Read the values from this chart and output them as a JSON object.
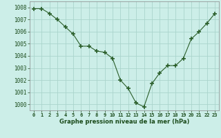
{
  "x": [
    0,
    1,
    2,
    3,
    4,
    5,
    6,
    7,
    8,
    9,
    10,
    11,
    12,
    13,
    14,
    15,
    16,
    17,
    18,
    19,
    20,
    21,
    22,
    23
  ],
  "y": [
    1007.9,
    1007.9,
    1007.5,
    1007.0,
    1006.4,
    1005.8,
    1004.8,
    1004.8,
    1004.4,
    1004.3,
    1003.8,
    1002.0,
    1001.3,
    1000.1,
    999.8,
    1001.7,
    1002.6,
    1003.2,
    1003.2,
    1003.8,
    1005.4,
    1006.0,
    1006.7,
    1007.5
  ],
  "line_color": "#2a5e2a",
  "marker_color": "#2a5e2a",
  "bg_color": "#cceee8",
  "grid_color": "#aad4cc",
  "xlabel": "Graphe pression niveau de la mer (hPa)",
  "xlabel_color": "#1a4a1a",
  "tick_color": "#1a4a1a",
  "ylim": [
    999.5,
    1008.5
  ],
  "yticks": [
    1000,
    1001,
    1002,
    1003,
    1004,
    1005,
    1006,
    1007,
    1008
  ],
  "xlim": [
    -0.5,
    23.5
  ],
  "xticks": [
    0,
    1,
    2,
    3,
    4,
    5,
    6,
    7,
    8,
    9,
    10,
    11,
    12,
    13,
    14,
    15,
    16,
    17,
    18,
    19,
    20,
    21,
    22,
    23
  ]
}
